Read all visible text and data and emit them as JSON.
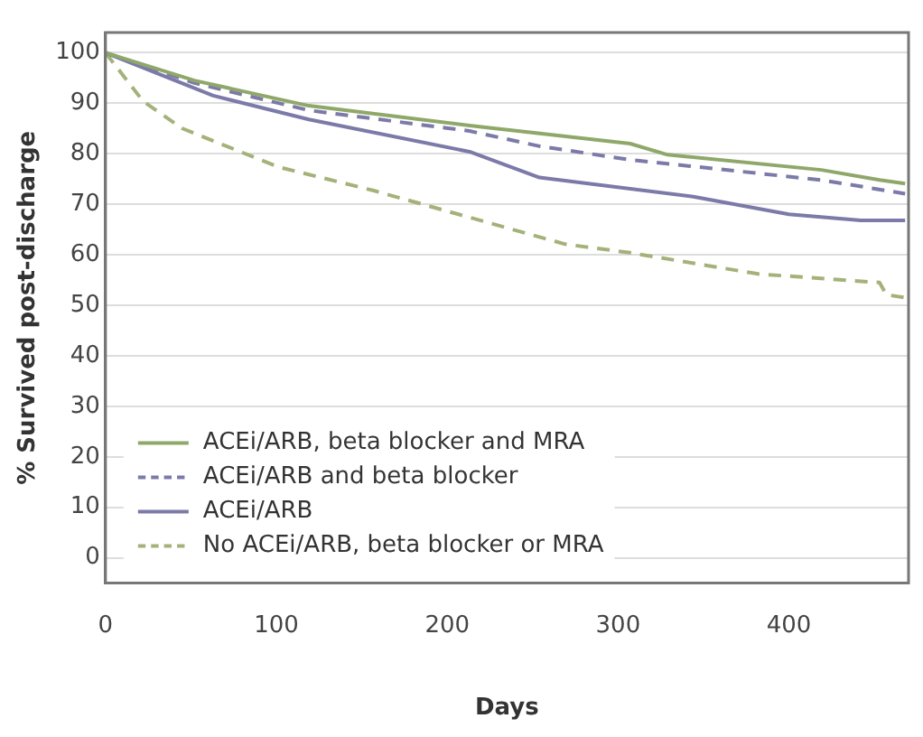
{
  "chart_data": {
    "type": "line",
    "xlabel": "Days",
    "ylabel": "% Survived post-discharge",
    "xlim": [
      0,
      470
    ],
    "xticks": [
      0,
      100,
      200,
      300,
      400
    ],
    "ylim": [
      -5,
      104
    ],
    "yticks": [
      0,
      10,
      20,
      30,
      40,
      50,
      60,
      70,
      80,
      90,
      100
    ],
    "grid": "y",
    "legend": "bottom left",
    "marker": "none",
    "series": [
      {
        "name": "ACEi/ARB, beta blocker and MRA",
        "color": "#8fa86a",
        "line_style": "solid",
        "x": [
          0,
          52,
          119,
          213,
          307,
          329,
          419,
          453,
          468
        ],
        "values": [
          100,
          94.5,
          89.5,
          85.6,
          82,
          79.8,
          76.8,
          74.8,
          74.1
        ]
      },
      {
        "name": "ACEi/ARB and beta blocker",
        "color": "#7b7aa8",
        "line_style": "dashed",
        "x": [
          0,
          52,
          119,
          213,
          254,
          307,
          419,
          468
        ],
        "values": [
          100,
          94,
          88.6,
          84.5,
          81.5,
          78.8,
          74.8,
          72.1
        ]
      },
      {
        "name": "ACEi/ARB",
        "color": "#7b7aa8",
        "line_style": "solid",
        "x": [
          0,
          63,
          119,
          213,
          254,
          344,
          400,
          442,
          468
        ],
        "values": [
          100,
          91.5,
          86.8,
          80.4,
          75.3,
          71.5,
          68,
          66.8,
          66.8
        ]
      },
      {
        "name": "No ACEi/ARB, beta blocker or MRA",
        "color": "#a4b27a",
        "line_style": "dashed",
        "x": [
          0,
          22,
          45,
          101,
          157,
          213,
          269,
          307,
          382,
          453,
          457,
          468
        ],
        "values": [
          100,
          90.4,
          85,
          77.4,
          72.7,
          67.4,
          62.1,
          60.4,
          56.2,
          54.5,
          52.1,
          51.5
        ]
      }
    ]
  }
}
